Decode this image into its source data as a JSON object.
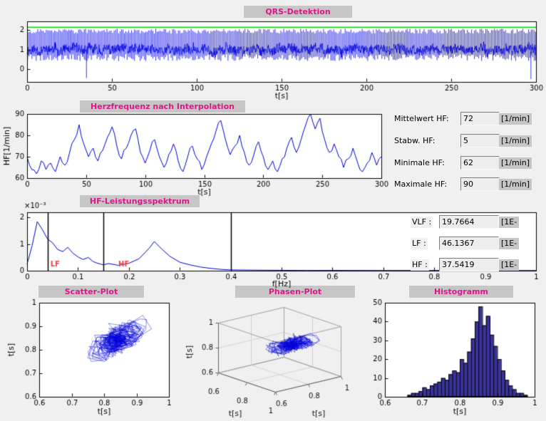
{
  "colors": {
    "figure_bg": "#f0f0f0",
    "label_bg": "#c6c6c6",
    "title_fg": "#dd1688",
    "line_blue": "#0000d8",
    "threshold_green": "#00dd00",
    "hist_fill": "#3a329c",
    "band_label_red": "#f04040"
  },
  "panels": {
    "qrs_title": "QRS-Detektion",
    "hr_title": "Herzfrequenz nach Interpolation",
    "spectrum_title": "HF-Leistungsspektrum",
    "scatter_title": "Scatter-Plot",
    "phase_title": "Phasen-Plot",
    "hist_title": "Histogramm"
  },
  "stats": {
    "rows": [
      {
        "label": "Mittelwert HF:",
        "value": "72",
        "unit": "[1/min]"
      },
      {
        "label": "Stabw. HF:",
        "value": "5",
        "unit": "[1/min]"
      },
      {
        "label": "Minimale HF:",
        "value": "62",
        "unit": "[1/min]"
      },
      {
        "label": "Maximale HF:",
        "value": "90",
        "unit": "[1/min]"
      }
    ]
  },
  "bands": {
    "rows": [
      {
        "label": "VLF :",
        "value": "19.7664",
        "unit": "[1E-"
      },
      {
        "label": "LF :",
        "value": "46.1367",
        "unit": "[1E-"
      },
      {
        "label": "HF :",
        "value": "37.5419",
        "unit": "[1E-"
      }
    ]
  },
  "chart_data": [
    {
      "id": "qrs",
      "type": "line",
      "title": "QRS-Detektion",
      "xlabel": "t[s]",
      "xlim": [
        0,
        300
      ],
      "xticks": [
        0,
        50,
        100,
        150,
        200,
        250,
        300
      ],
      "ylim": [
        -0.65,
        2.45
      ],
      "yticks": [
        0,
        1,
        2
      ],
      "threshold": 2.15,
      "signal": {
        "baseline": 1.0,
        "noise_amp": 0.45,
        "beat_interval_s": 0.84,
        "r_peak_level": 2.08,
        "s_min_level": 0.42,
        "seed": 11,
        "dips": [
          {
            "t": 35,
            "v": -0.45
          },
          {
            "t": 297,
            "v": -0.5
          }
        ]
      }
    },
    {
      "id": "hr",
      "type": "line",
      "title": "Herzfrequenz nach Interpolation",
      "xlabel": "t[s]",
      "ylabel": "HF[1/min]",
      "xlim": [
        0,
        300
      ],
      "xticks": [
        0,
        50,
        100,
        150,
        200,
        250,
        300
      ],
      "ylim": [
        60,
        90
      ],
      "yticks": [
        60,
        70,
        80,
        90
      ],
      "sample_step_s": 4,
      "jitter": 1.6,
      "seed": 5,
      "mean": 72,
      "std": 5,
      "min": 62,
      "max": 90,
      "values": [
        70,
        64,
        62,
        68,
        64,
        67,
        63,
        70,
        66,
        72,
        78,
        85,
        76,
        70,
        74,
        68,
        73,
        79,
        84,
        75,
        69,
        74,
        80,
        83,
        72,
        67,
        73,
        78,
        70,
        65,
        71,
        76,
        68,
        63,
        70,
        75,
        69,
        64,
        70,
        76,
        82,
        87,
        78,
        71,
        75,
        80,
        72,
        66,
        71,
        77,
        70,
        64,
        68,
        63,
        69,
        74,
        79,
        72,
        78,
        85,
        90,
        83,
        88,
        78,
        72,
        76,
        70,
        65,
        69,
        74,
        67,
        63,
        67,
        72,
        66,
        70
      ]
    },
    {
      "id": "spectrum",
      "type": "line",
      "title": "HF-Leistungsspektrum",
      "xlabel": "f[Hz]",
      "scale_label": "×10⁻³",
      "xlim": [
        0,
        1
      ],
      "xticks": [
        0,
        0.1,
        0.2,
        0.3,
        0.4,
        0.5,
        0.6,
        0.7,
        0.8,
        0.9,
        1
      ],
      "ylim_e3": [
        0,
        2.2
      ],
      "yticks_e3": [
        0,
        1,
        2
      ],
      "points_e3": [
        [
          0,
          0.25
        ],
        [
          0.01,
          0.95
        ],
        [
          0.02,
          1.85
        ],
        [
          0.03,
          1.55
        ],
        [
          0.04,
          1.2
        ],
        [
          0.05,
          1.05
        ],
        [
          0.06,
          0.8
        ],
        [
          0.07,
          0.72
        ],
        [
          0.08,
          0.88
        ],
        [
          0.09,
          0.66
        ],
        [
          0.1,
          0.52
        ],
        [
          0.11,
          0.42
        ],
        [
          0.12,
          0.5
        ],
        [
          0.13,
          0.34
        ],
        [
          0.14,
          0.27
        ],
        [
          0.15,
          0.22
        ],
        [
          0.16,
          0.27
        ],
        [
          0.18,
          0.2
        ],
        [
          0.2,
          0.28
        ],
        [
          0.22,
          0.45
        ],
        [
          0.24,
          0.85
        ],
        [
          0.25,
          1.1
        ],
        [
          0.26,
          0.9
        ],
        [
          0.28,
          0.55
        ],
        [
          0.3,
          0.32
        ],
        [
          0.32,
          0.22
        ],
        [
          0.34,
          0.14
        ],
        [
          0.36,
          0.09
        ],
        [
          0.38,
          0.05
        ],
        [
          0.4,
          0.03
        ],
        [
          0.45,
          0.02
        ],
        [
          0.5,
          0.015
        ],
        [
          0.55,
          0.01
        ],
        [
          0.6,
          0.012
        ],
        [
          0.7,
          0.008
        ],
        [
          0.8,
          0.01
        ],
        [
          0.9,
          0.006
        ],
        [
          1,
          0.008
        ]
      ],
      "band_lines_hz": [
        0.04,
        0.15,
        0.4
      ],
      "band_labels": [
        {
          "text": "LF",
          "f": 0.055
        },
        {
          "text": "HF",
          "f": 0.19
        }
      ]
    },
    {
      "id": "scatter",
      "type": "scatter",
      "title": "Scatter-Plot",
      "xlabel": "t[s]",
      "ylabel": "t[s]",
      "xlim": [
        0.6,
        1
      ],
      "ylim": [
        0.6,
        1
      ],
      "xticks": [
        0.6,
        0.7,
        0.8,
        0.9,
        1
      ],
      "yticks": [
        0.6,
        0.7,
        0.8,
        0.9,
        1
      ],
      "rr": {
        "seed": 42,
        "n": 360,
        "mean": 0.835,
        "std": 0.032,
        "ar": 0.65,
        "min": 0.66,
        "max": 0.96
      }
    },
    {
      "id": "phase",
      "type": "line3d",
      "title": "Phasen-Plot",
      "xlabel": "t[s]",
      "ylabel": "t[s]",
      "zlabel": "t[s]",
      "lim": [
        0.6,
        1
      ],
      "ticks": [
        0.6,
        0.8,
        1
      ],
      "source": "scatter-rr"
    },
    {
      "id": "hist",
      "type": "bar",
      "title": "Histogramm",
      "xlabel": "t[s]",
      "xlim": [
        0.6,
        1
      ],
      "xticks": [
        0.6,
        0.7,
        0.8,
        0.9,
        1
      ],
      "ylim": [
        0,
        50
      ],
      "yticks": [
        0,
        10,
        20,
        30,
        40,
        50
      ],
      "bin_start": 0.66,
      "bin_width": 0.01,
      "counts": [
        1,
        2,
        2,
        3,
        5,
        4,
        6,
        7,
        8,
        10,
        9,
        12,
        14,
        13,
        20,
        18,
        24,
        31,
        40,
        48,
        38,
        43,
        33,
        27,
        20,
        14,
        9,
        6,
        4,
        2,
        2,
        1
      ]
    }
  ]
}
